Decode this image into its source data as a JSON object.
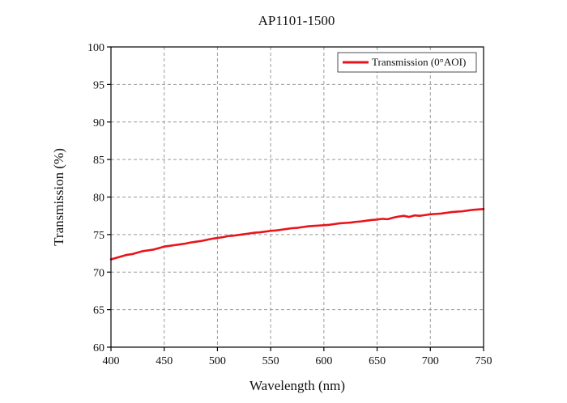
{
  "chart_data": {
    "type": "line",
    "title": "AP1101-1500",
    "xlabel": "Wavelength (nm)",
    "ylabel": "Transmission (%)",
    "xlim": [
      400,
      750
    ],
    "ylim": [
      60,
      100
    ],
    "xticks": [
      400,
      450,
      500,
      550,
      600,
      650,
      700,
      750
    ],
    "yticks": [
      60,
      65,
      70,
      75,
      80,
      85,
      90,
      95,
      100
    ],
    "grid": true,
    "legend_position": "top-right",
    "series": [
      {
        "name": "Transmission (0°AOI)",
        "color": "#e8141b",
        "x": [
          400,
          405,
          410,
          415,
          420,
          425,
          430,
          435,
          440,
          445,
          450,
          455,
          460,
          465,
          470,
          475,
          480,
          485,
          490,
          495,
          500,
          505,
          510,
          515,
          520,
          525,
          530,
          535,
          540,
          545,
          550,
          555,
          560,
          565,
          570,
          575,
          580,
          585,
          590,
          595,
          600,
          605,
          610,
          615,
          620,
          625,
          630,
          635,
          640,
          645,
          650,
          655,
          660,
          665,
          670,
          675,
          680,
          685,
          690,
          695,
          700,
          705,
          710,
          715,
          720,
          725,
          730,
          735,
          740,
          745,
          750
        ],
        "y": [
          71.7,
          71.9,
          72.1,
          72.3,
          72.4,
          72.6,
          72.8,
          72.9,
          73.0,
          73.2,
          73.4,
          73.5,
          73.6,
          73.7,
          73.8,
          73.95,
          74.05,
          74.15,
          74.3,
          74.45,
          74.55,
          74.65,
          74.8,
          74.85,
          74.95,
          75.05,
          75.15,
          75.25,
          75.3,
          75.4,
          75.5,
          75.55,
          75.65,
          75.75,
          75.85,
          75.9,
          76.0,
          76.1,
          76.15,
          76.2,
          76.25,
          76.3,
          76.4,
          76.5,
          76.55,
          76.6,
          76.7,
          76.75,
          76.85,
          76.95,
          77.0,
          77.1,
          77.05,
          77.25,
          77.4,
          77.5,
          77.35,
          77.55,
          77.5,
          77.6,
          77.7,
          77.75,
          77.8,
          77.9,
          78.0,
          78.05,
          78.1,
          78.2,
          78.3,
          78.35,
          78.4
        ]
      }
    ]
  }
}
